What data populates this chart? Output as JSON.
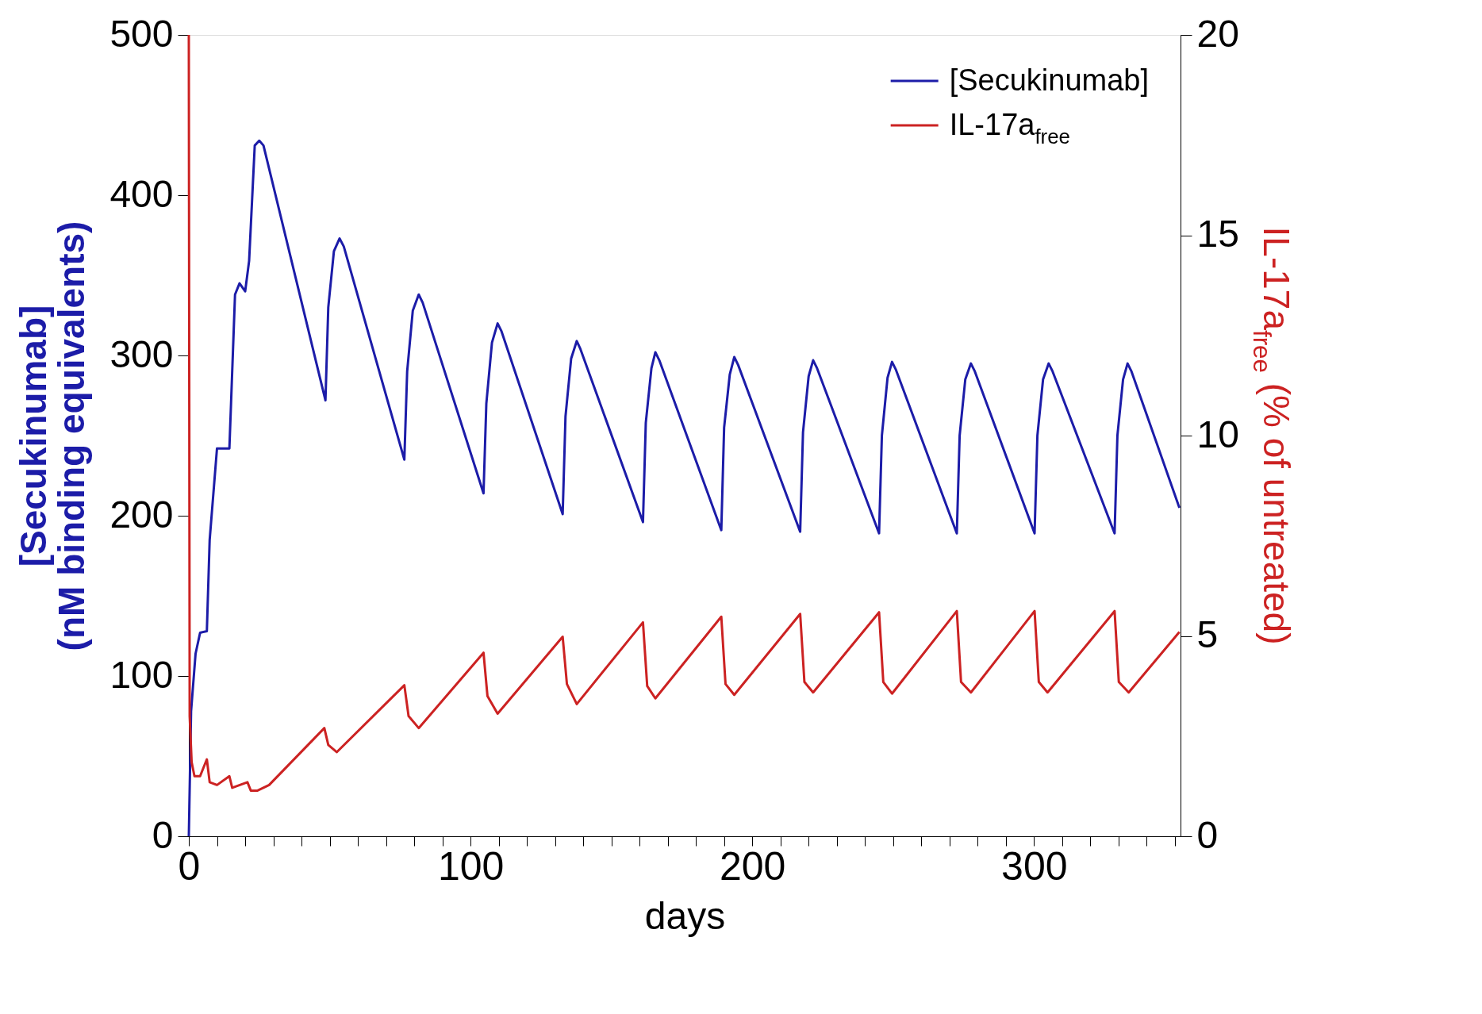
{
  "chart_data": {
    "type": "line",
    "xlabel": "days",
    "ylabel": [
      "[Secukinumab]",
      "(nM binding equivalents)"
    ],
    "y2label": "IL-17a$_{free}$ (% of untreated)",
    "xlim": [
      0,
      352
    ],
    "xticks": [
      0,
      {
        "value": 10,
        "label": null
      },
      {
        "value": 20,
        "label": null
      },
      {
        "value": 30,
        "label": null
      },
      {
        "value": 40,
        "label": null
      },
      {
        "value": 50,
        "label": null
      },
      {
        "value": 60,
        "label": null
      },
      {
        "value": 70,
        "label": null
      },
      {
        "value": 80,
        "label": null
      },
      {
        "value": 90,
        "label": null
      },
      100,
      {
        "value": 110,
        "label": null
      },
      {
        "value": 120,
        "label": null
      },
      {
        "value": 130,
        "label": null
      },
      {
        "value": 140,
        "label": null
      },
      {
        "value": 150,
        "label": null
      },
      {
        "value": 160,
        "label": null
      },
      {
        "value": 170,
        "label": null
      },
      {
        "value": 180,
        "label": null
      },
      {
        "value": 190,
        "label": null
      },
      200,
      {
        "value": 210,
        "label": null
      },
      {
        "value": 220,
        "label": null
      },
      {
        "value": 230,
        "label": null
      },
      {
        "value": 240,
        "label": null
      },
      {
        "value": 250,
        "label": null
      },
      {
        "value": 260,
        "label": null
      },
      {
        "value": 270,
        "label": null
      },
      {
        "value": 280,
        "label": null
      },
      {
        "value": 290,
        "label": null
      },
      300,
      {
        "value": 310,
        "label": null
      },
      {
        "value": 320,
        "label": null
      },
      {
        "value": 330,
        "label": null
      },
      {
        "value": 340,
        "label": null
      },
      {
        "value": 350,
        "label": null
      }
    ],
    "ylim": [
      0,
      500
    ],
    "yticks": [
      0,
      100,
      200,
      300,
      400,
      500
    ],
    "y2lim": [
      0,
      20
    ],
    "y2ticks": [
      0,
      5,
      10,
      15,
      20
    ],
    "grid": false,
    "legend": "top right",
    "line_style": "solid",
    "marker": "none",
    "series": [
      {
        "name": "[Secukinumab]",
        "color": "#1c1ca8",
        "x": [
          0,
          0.8,
          2.4,
          4,
          6.4,
          7.4,
          10,
          12.4,
          14.4,
          16.4,
          18,
          20,
          21.4,
          23.4,
          25,
          26.5,
          48.5,
          49.5,
          51.5,
          53.5,
          55,
          76.5,
          77.5,
          79.5,
          81.6,
          83,
          104.6,
          105.6,
          107.6,
          109.6,
          111,
          132.7,
          133.7,
          135.7,
          137.7,
          139,
          161.2,
          162.2,
          164.2,
          165.6,
          167,
          189,
          190,
          192,
          193.6,
          195,
          217,
          218,
          220,
          221.6,
          223,
          245,
          246,
          248,
          249.6,
          251,
          272.6,
          273.6,
          275.6,
          277.6,
          279,
          300.2,
          301.2,
          303.2,
          305.2,
          306.6,
          328.6,
          329.6,
          331.6,
          333.2,
          334.6,
          351.6
        ],
        "values": [
          0,
          78,
          114,
          127,
          128,
          185,
          242,
          242,
          242,
          338,
          345,
          340,
          359,
          431,
          434,
          431,
          272,
          330,
          365,
          373,
          368,
          235,
          290,
          328,
          338,
          333,
          214,
          270,
          308,
          320,
          315,
          201,
          262,
          298,
          309,
          304,
          196,
          258,
          292,
          302,
          297,
          191,
          255,
          288,
          299,
          294,
          190,
          252,
          287,
          297,
          292,
          189,
          250,
          286,
          296,
          291,
          189,
          250,
          285,
          295,
          290,
          189,
          250,
          285,
          295,
          290,
          189,
          250,
          285,
          295,
          290,
          205
        ]
      },
      {
        "name": "IL-17a$_{free}$",
        "color": "#cc2222",
        "axis": "y2",
        "x": [
          0,
          0.3,
          1,
          2,
          4,
          6.4,
          7.4,
          10,
          14.4,
          15.4,
          20.8,
          22,
          24.4,
          28.5,
          48.1,
          49.5,
          52.5,
          76.5,
          78,
          81.6,
          104.6,
          106,
          109.6,
          132.7,
          134.2,
          137.7,
          161.2,
          162.7,
          165.6,
          189,
          190.5,
          193.6,
          217,
          218.5,
          221.6,
          245,
          246.5,
          249.6,
          272.6,
          274.1,
          277.6,
          300.2,
          301.7,
          304.8,
          328.6,
          330.1,
          333.6,
          351.6
        ],
        "values": [
          20,
          3.0,
          1.85,
          1.5,
          1.5,
          1.92,
          1.35,
          1.28,
          1.5,
          1.21,
          1.35,
          1.14,
          1.14,
          1.28,
          2.7,
          2.28,
          2.1,
          3.77,
          3.0,
          2.7,
          4.58,
          3.5,
          3.06,
          4.98,
          3.8,
          3.3,
          5.34,
          3.75,
          3.44,
          5.48,
          3.8,
          3.53,
          5.55,
          3.85,
          3.59,
          5.59,
          3.85,
          3.56,
          5.62,
          3.85,
          3.59,
          5.62,
          3.85,
          3.59,
          5.62,
          3.85,
          3.59,
          5.1
        ]
      }
    ]
  }
}
